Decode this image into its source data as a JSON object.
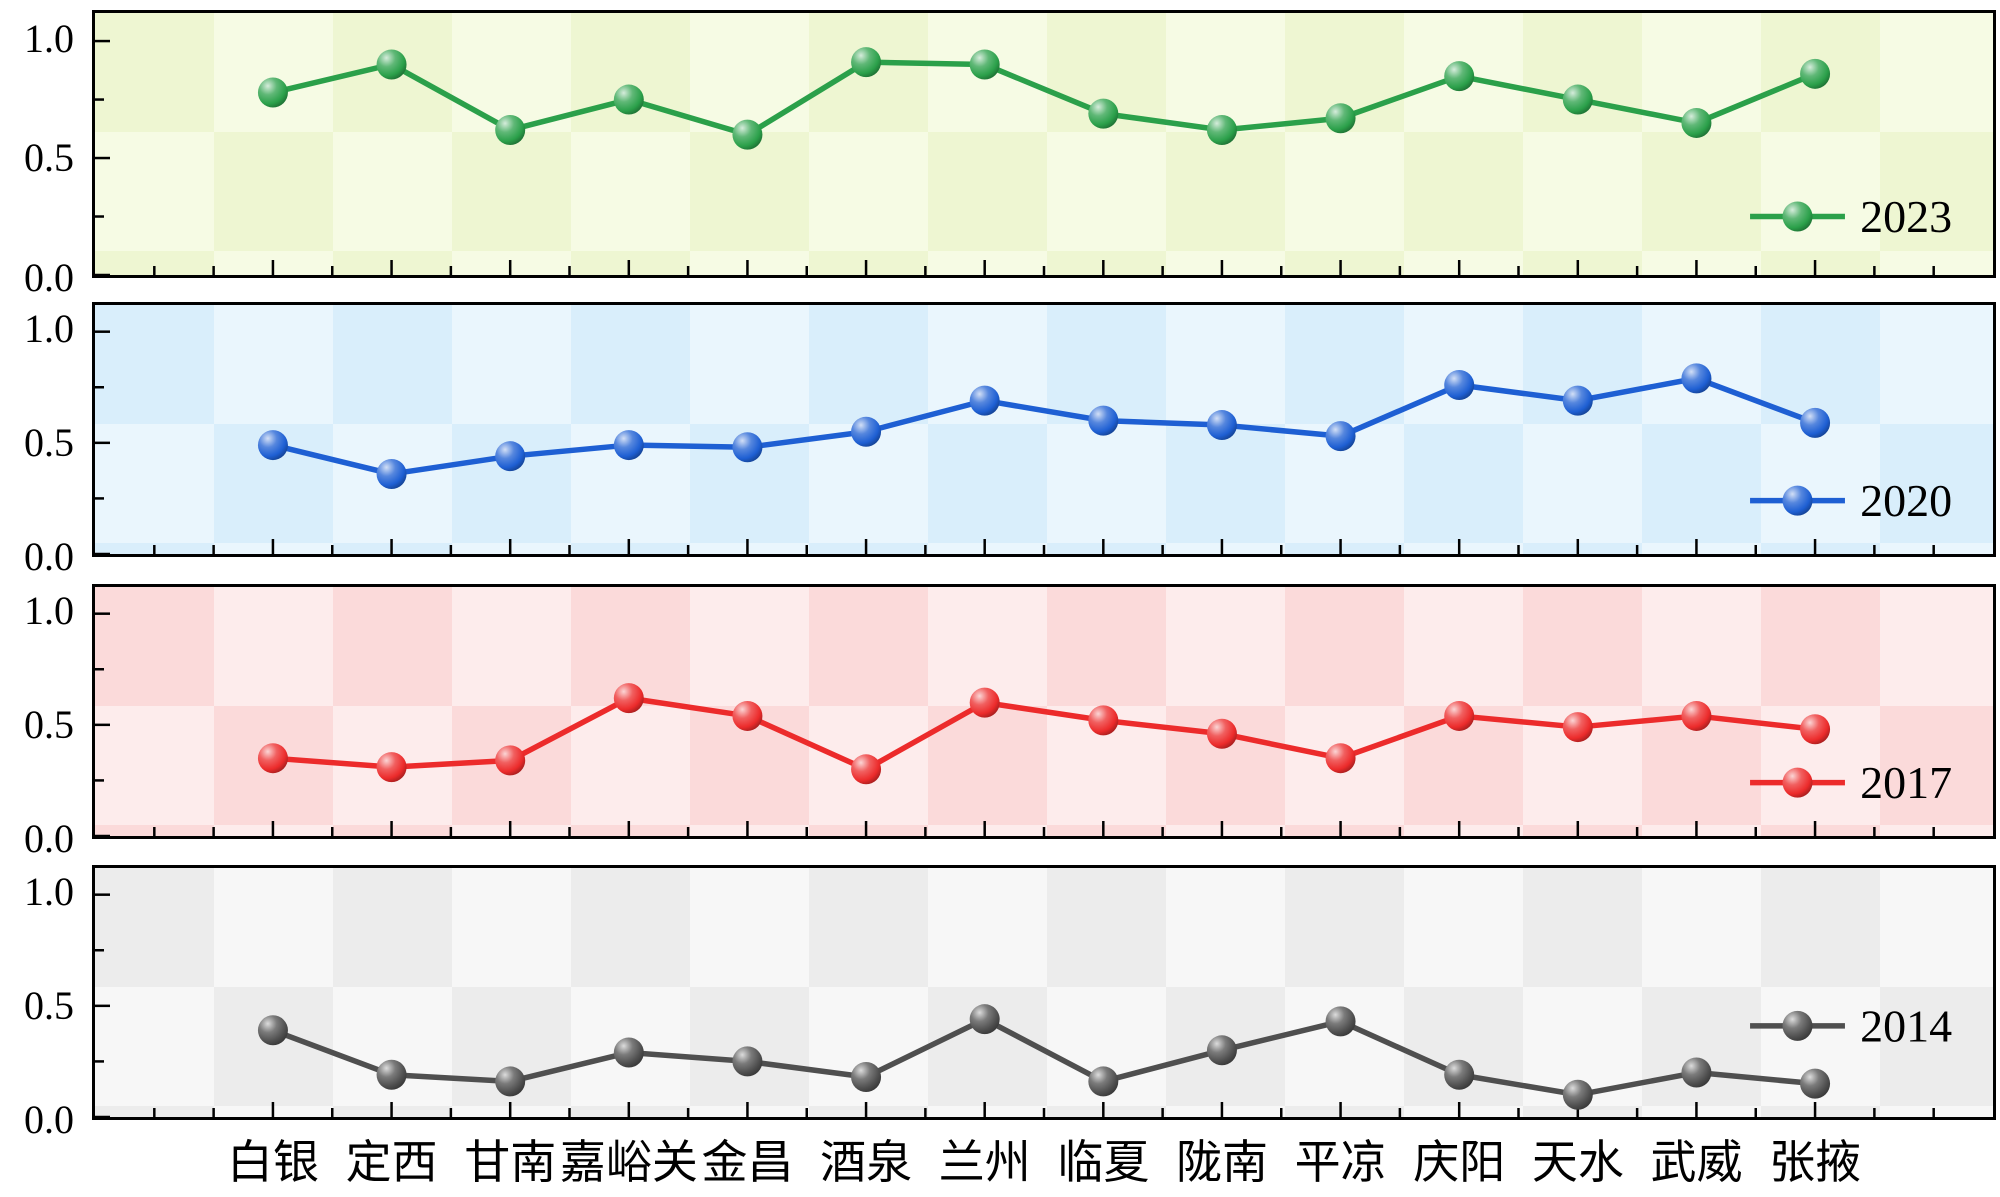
{
  "chart_data": {
    "type": "line",
    "categories": [
      "白银",
      "定西",
      "甘南",
      "嘉峪关",
      "金昌",
      "酒泉",
      "兰州",
      "临夏",
      "陇南",
      "平凉",
      "庆阳",
      "天水",
      "武威",
      "张掖"
    ],
    "y_ticks": [
      "1.0",
      "0.5",
      "0.0"
    ],
    "ylim": [
      0,
      1.12
    ],
    "grid": false,
    "legend_position": "right-inside",
    "panels": [
      {
        "year": "2023",
        "color": "#2BA04A",
        "bg": "#eef6d2",
        "bg_alt": "#f6fbe4",
        "values": [
          0.78,
          0.9,
          0.62,
          0.75,
          0.6,
          0.91,
          0.9,
          0.69,
          0.62,
          0.67,
          0.85,
          0.75,
          0.65,
          0.86
        ],
        "legend_v": 0.25
      },
      {
        "year": "2020",
        "color": "#1E5FD3",
        "bg": "#d9eefb",
        "bg_alt": "#eaf6fd",
        "values": [
          0.49,
          0.36,
          0.44,
          0.49,
          0.48,
          0.55,
          0.69,
          0.6,
          0.58,
          0.53,
          0.76,
          0.69,
          0.79,
          0.59
        ],
        "legend_v": 0.24
      },
      {
        "year": "2017",
        "color": "#EC2B2B",
        "bg": "#fbdada",
        "bg_alt": "#fdecec",
        "values": [
          0.35,
          0.31,
          0.34,
          0.62,
          0.54,
          0.3,
          0.6,
          0.52,
          0.46,
          0.35,
          0.54,
          0.49,
          0.54,
          0.48
        ],
        "legend_v": 0.24
      },
      {
        "year": "2014",
        "color": "#4F4F4F",
        "bg": "#ececec",
        "bg_alt": "#f7f7f7",
        "values": [
          0.39,
          0.19,
          0.16,
          0.29,
          0.25,
          0.18,
          0.44,
          0.16,
          0.3,
          0.43,
          0.19,
          0.1,
          0.2,
          0.15
        ],
        "legend_v": 0.41
      }
    ]
  }
}
